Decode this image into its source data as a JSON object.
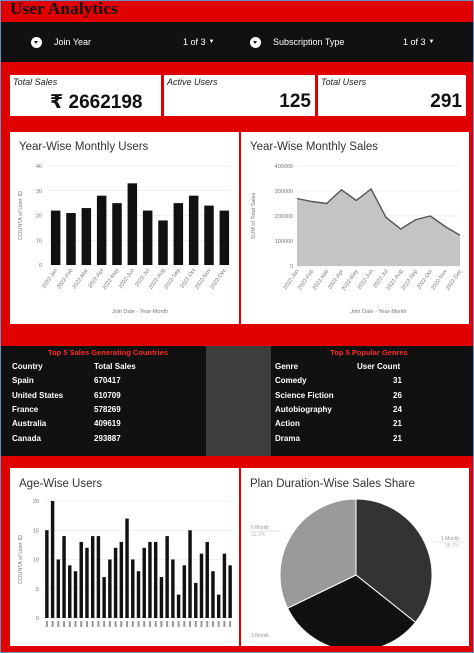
{
  "app": {
    "title": "User Analytics"
  },
  "filters": [
    {
      "label": "Join Year",
      "count": "1 of 3"
    },
    {
      "label": "Subscription Type",
      "count": "1 of 3"
    }
  ],
  "kpis": [
    {
      "label": "Total Sales",
      "value": "₹ 2662198"
    },
    {
      "label": "Active Users",
      "value": "125"
    },
    {
      "label": "Total Users",
      "value": "291"
    }
  ],
  "monthly_users": {
    "title": "Year-Wise Monthly Users",
    "ylabel": "COUNTA of User ID",
    "xlabel": "Join Date - Year-Month",
    "yticks": [
      "0",
      "10",
      "20",
      "30",
      "40"
    ]
  },
  "monthly_sales": {
    "title": "Year-Wise Monthly Sales",
    "ylabel": "SUM of Total Sales",
    "xlabel": "Join Date - Year-Month",
    "yticks": [
      "0",
      "100000",
      "200000",
      "300000",
      "400000"
    ]
  },
  "countries_table": {
    "title": "Top 5 Sales Generating Countries",
    "headers": [
      "Country",
      "Total Sales"
    ],
    "rows": [
      [
        "Spain",
        "670417"
      ],
      [
        "United States",
        "610709"
      ],
      [
        "France",
        "578269"
      ],
      [
        "Australia",
        "409619"
      ],
      [
        "Canada",
        "293887"
      ]
    ]
  },
  "genres_table": {
    "title": "Top 5 Popular Genres",
    "headers": [
      "Genre",
      "User Count"
    ],
    "rows": [
      [
        "Comedy",
        "31"
      ],
      [
        "Science Fiction",
        "26"
      ],
      [
        "Autobiography",
        "24"
      ],
      [
        "Action",
        "21"
      ],
      [
        "Drama",
        "21"
      ]
    ]
  },
  "age_users": {
    "title": "Age-Wise Users",
    "ylabel": "COUNTA of User ID",
    "yticks": [
      "0",
      "5",
      "10",
      "15",
      "20"
    ]
  },
  "plan_share": {
    "title": "Plan Duration-Wise Sales Share",
    "labels": [
      {
        "name": "6 Month",
        "pct": "32.2%"
      },
      {
        "name": "1 Month",
        "pct": "35.7%"
      },
      {
        "name": "3 Month",
        "pct": ""
      }
    ]
  },
  "chart_data": [
    {
      "type": "bar",
      "title": "Year-Wise Monthly Users",
      "xlabel": "Join Date - Year-Month",
      "ylabel": "COUNTA of User ID",
      "ylim": [
        0,
        40
      ],
      "grid": true,
      "categories": [
        "2022-Jan",
        "2022-Feb",
        "2022-Mar",
        "2022-Apr",
        "2022-May",
        "2022-Jun",
        "2022-Jul",
        "2022-Aug",
        "2022-Sep",
        "2022-Oct",
        "2022-Nov",
        "2022-Dec"
      ],
      "values": [
        22,
        21,
        23,
        28,
        25,
        33,
        22,
        18,
        25,
        28,
        24,
        22
      ]
    },
    {
      "type": "area",
      "title": "Year-Wise Monthly Sales",
      "xlabel": "Join Date - Year-Month",
      "ylabel": "SUM of Total Sales",
      "ylim": [
        0,
        400000
      ],
      "grid": true,
      "categories": [
        "2022-Jan",
        "2022-Feb",
        "2022-Mar",
        "2022-Apr",
        "2022-May",
        "2022-Jun",
        "2022-Jul",
        "2022-Aug",
        "2022-Sep",
        "2022-Oct",
        "2022-Nov",
        "2022-Dec"
      ],
      "values": [
        270000,
        258000,
        250000,
        305000,
        262000,
        308000,
        195000,
        148000,
        185000,
        200000,
        158000,
        123000
      ]
    },
    {
      "type": "bar",
      "title": "Age-Wise Users",
      "ylabel": "COUNTA of User ID",
      "ylim": [
        0,
        20
      ],
      "grid": true,
      "categories": [
        "a1",
        "a2",
        "a3",
        "a4",
        "a5",
        "a6",
        "a7",
        "a8",
        "a9",
        "a10",
        "a11",
        "a12",
        "a13",
        "a14",
        "a15",
        "a16",
        "a17",
        "a18",
        "a19",
        "a20",
        "a21",
        "a22",
        "a23",
        "a24",
        "a25",
        "a26",
        "a27",
        "a28",
        "a29",
        "a30",
        "a31",
        "a32",
        "a33"
      ],
      "values": [
        15,
        20,
        10,
        14,
        9,
        8,
        13,
        12,
        14,
        14,
        7,
        10,
        12,
        13,
        17,
        10,
        8,
        12,
        13,
        13,
        7,
        14,
        10,
        4,
        9,
        15,
        6,
        11,
        13,
        8,
        4,
        11,
        9
      ]
    },
    {
      "type": "pie",
      "title": "Plan Duration-Wise Sales Share",
      "categories": [
        "1 Month",
        "3 Month",
        "6 Month"
      ],
      "values": [
        35.7,
        32.1,
        32.2
      ],
      "colors": [
        "#333333",
        "#111111",
        "#9a9a9a"
      ]
    }
  ]
}
